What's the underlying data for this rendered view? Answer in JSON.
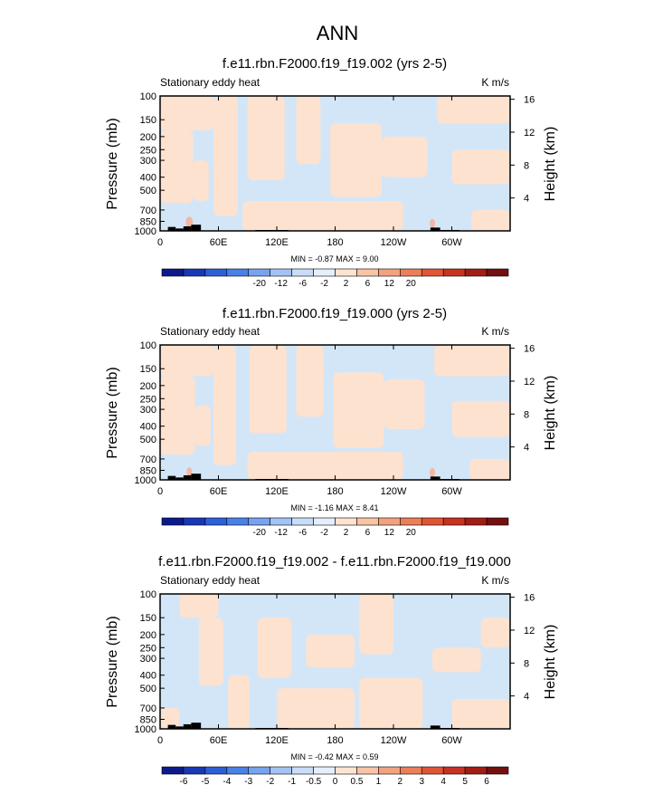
{
  "figure": {
    "title": "ANN",
    "fill_colors": {
      "ocean_blue": "#d3e6f8",
      "peach": "#fde2cf",
      "light_red": "#f5b7a0",
      "terrain": "#000000",
      "frame": "#000000"
    }
  },
  "chart_data": [
    {
      "type": "heatmap",
      "title": "f.e11.rbn.F2000.f19_f19.002 (yrs 2-5)",
      "left_label": "Stationary eddy heat",
      "right_label": "K m/s",
      "ylabel": "Pressure (mb)",
      "ylabel_right": "Height (km)",
      "x_ticks": [
        "0",
        "60E",
        "120E",
        "180",
        "120W",
        "60W"
      ],
      "x_tick_values": [
        0,
        60,
        120,
        180,
        240,
        300
      ],
      "xlim": [
        0,
        360
      ],
      "y_ticks": [
        "100",
        "150",
        "200",
        "250",
        "300",
        "400",
        "500",
        "700",
        "850",
        "1000"
      ],
      "y_tick_values": [
        100,
        150,
        200,
        250,
        300,
        400,
        500,
        700,
        850,
        1000
      ],
      "ylim": [
        100,
        1000
      ],
      "right_ticks": [
        "4",
        "8",
        "12",
        "16"
      ],
      "right_tick_values": [
        4,
        8,
        12,
        16
      ],
      "stats": "MIN = -0.87  MAX =  9.00",
      "min": -0.87,
      "max": 9.0,
      "colorbar": {
        "labels": [
          "-20",
          "-12",
          "-6",
          "-2",
          "2",
          "6",
          "12",
          "20"
        ],
        "colors": [
          "#0c1b8c",
          "#1838b8",
          "#2c5fd8",
          "#4a81e8",
          "#77a3ef",
          "#a3c3f5",
          "#c9dcf8",
          "#e5eefb",
          "#fde3d0",
          "#f8c4a6",
          "#f2a27e",
          "#ec7e58",
          "#e05535",
          "#c73222",
          "#a31d14",
          "#741010"
        ]
      },
      "terrain": [
        {
          "lon_start": 8,
          "lon_end": 16,
          "top_mb": 935
        },
        {
          "lon_start": 16,
          "lon_end": 24,
          "top_mb": 960
        },
        {
          "lon_start": 24,
          "lon_end": 32,
          "top_mb": 925
        },
        {
          "lon_start": 32,
          "lon_end": 42,
          "top_mb": 900
        },
        {
          "lon_start": 98,
          "lon_end": 132,
          "top_mb": 985
        },
        {
          "lon_start": 278,
          "lon_end": 288,
          "top_mb": 945
        },
        {
          "lon_start": 288,
          "lon_end": 308,
          "top_mb": 985
        }
      ],
      "peach_regions": [
        {
          "lon": [
            0,
            55
          ],
          "p": [
            100,
            180
          ]
        },
        {
          "lon": [
            0,
            34
          ],
          "p": [
            180,
            620
          ]
        },
        {
          "lon": [
            34,
            50
          ],
          "p": [
            300,
            600
          ]
        },
        {
          "lon": [
            55,
            80
          ],
          "p": [
            100,
            780
          ]
        },
        {
          "lon": [
            90,
            128
          ],
          "p": [
            100,
            420
          ]
        },
        {
          "lon": [
            140,
            165
          ],
          "p": [
            100,
            320
          ]
        },
        {
          "lon": [
            85,
            250
          ],
          "p": [
            600,
            1000
          ]
        },
        {
          "lon": [
            175,
            228
          ],
          "p": [
            160,
            560
          ]
        },
        {
          "lon": [
            228,
            275
          ],
          "p": [
            200,
            400
          ]
        },
        {
          "lon": [
            285,
            360
          ],
          "p": [
            100,
            160
          ]
        },
        {
          "lon": [
            300,
            360
          ],
          "p": [
            250,
            450
          ]
        },
        {
          "lon": [
            320,
            360
          ],
          "p": [
            700,
            1000
          ]
        }
      ],
      "warm_spots": [
        {
          "lon": 30,
          "p": 860,
          "rx": 4,
          "ry": 6
        },
        {
          "lon": 280,
          "p": 880,
          "rx": 3,
          "ry": 5
        }
      ]
    },
    {
      "type": "heatmap",
      "title": "f.e11.rbn.F2000.f19_f19.000 (yrs 2-5)",
      "left_label": "Stationary eddy heat",
      "right_label": "K m/s",
      "ylabel": "Pressure (mb)",
      "ylabel_right": "Height (km)",
      "x_ticks": [
        "0",
        "60E",
        "120E",
        "180",
        "120W",
        "60W"
      ],
      "x_tick_values": [
        0,
        60,
        120,
        180,
        240,
        300
      ],
      "xlim": [
        0,
        360
      ],
      "y_ticks": [
        "100",
        "150",
        "200",
        "250",
        "300",
        "400",
        "500",
        "700",
        "850",
        "1000"
      ],
      "y_tick_values": [
        100,
        150,
        200,
        250,
        300,
        400,
        500,
        700,
        850,
        1000
      ],
      "ylim": [
        100,
        1000
      ],
      "right_ticks": [
        "4",
        "8",
        "12",
        "16"
      ],
      "right_tick_values": [
        4,
        8,
        12,
        16
      ],
      "stats": "MIN = -1.16  MAX =  8.41",
      "min": -1.16,
      "max": 8.41,
      "colorbar": {
        "labels": [
          "-20",
          "-12",
          "-6",
          "-2",
          "2",
          "6",
          "12",
          "20"
        ],
        "colors": [
          "#0c1b8c",
          "#1838b8",
          "#2c5fd8",
          "#4a81e8",
          "#77a3ef",
          "#a3c3f5",
          "#c9dcf8",
          "#e5eefb",
          "#fde3d0",
          "#f8c4a6",
          "#f2a27e",
          "#ec7e58",
          "#e05535",
          "#c73222",
          "#a31d14",
          "#741010"
        ]
      },
      "terrain": [
        {
          "lon_start": 8,
          "lon_end": 16,
          "top_mb": 935
        },
        {
          "lon_start": 16,
          "lon_end": 24,
          "top_mb": 960
        },
        {
          "lon_start": 24,
          "lon_end": 32,
          "top_mb": 925
        },
        {
          "lon_start": 32,
          "lon_end": 42,
          "top_mb": 900
        },
        {
          "lon_start": 98,
          "lon_end": 132,
          "top_mb": 985
        },
        {
          "lon_start": 278,
          "lon_end": 288,
          "top_mb": 945
        },
        {
          "lon_start": 288,
          "lon_end": 308,
          "top_mb": 985
        }
      ],
      "peach_regions": [
        {
          "lon": [
            0,
            55
          ],
          "p": [
            100,
            170
          ]
        },
        {
          "lon": [
            0,
            36
          ],
          "p": [
            170,
            650
          ]
        },
        {
          "lon": [
            36,
            52
          ],
          "p": [
            280,
            560
          ]
        },
        {
          "lon": [
            55,
            78
          ],
          "p": [
            100,
            780
          ]
        },
        {
          "lon": [
            92,
            130
          ],
          "p": [
            100,
            450
          ]
        },
        {
          "lon": [
            140,
            168
          ],
          "p": [
            100,
            340
          ]
        },
        {
          "lon": [
            90,
            250
          ],
          "p": [
            620,
            1000
          ]
        },
        {
          "lon": [
            178,
            230
          ],
          "p": [
            160,
            580
          ]
        },
        {
          "lon": [
            230,
            272
          ],
          "p": [
            180,
            420
          ]
        },
        {
          "lon": [
            282,
            360
          ],
          "p": [
            100,
            170
          ]
        },
        {
          "lon": [
            300,
            360
          ],
          "p": [
            260,
            480
          ]
        },
        {
          "lon": [
            318,
            360
          ],
          "p": [
            700,
            1000
          ]
        }
      ],
      "warm_spots": [
        {
          "lon": 30,
          "p": 870,
          "rx": 3,
          "ry": 5
        },
        {
          "lon": 280,
          "p": 880,
          "rx": 3,
          "ry": 5
        }
      ]
    },
    {
      "type": "heatmap",
      "title": "f.e11.rbn.F2000.f19_f19.002 - f.e11.rbn.F2000.f19_f19.000",
      "left_label": "Stationary eddy heat",
      "right_label": "K m/s",
      "ylabel": "Pressure (mb)",
      "ylabel_right": "Height (km)",
      "x_ticks": [
        "0",
        "60E",
        "120E",
        "180",
        "120W",
        "60W"
      ],
      "x_tick_values": [
        0,
        60,
        120,
        180,
        240,
        300
      ],
      "xlim": [
        0,
        360
      ],
      "y_ticks": [
        "100",
        "150",
        "200",
        "250",
        "300",
        "400",
        "500",
        "700",
        "850",
        "1000"
      ],
      "y_tick_values": [
        100,
        150,
        200,
        250,
        300,
        400,
        500,
        700,
        850,
        1000
      ],
      "ylim": [
        100,
        1000
      ],
      "right_ticks": [
        "4",
        "8",
        "12",
        "16"
      ],
      "right_tick_values": [
        4,
        8,
        12,
        16
      ],
      "stats": "MIN = -0.42  MAX =  0.59",
      "min": -0.42,
      "max": 0.59,
      "colorbar": {
        "labels": [
          "-6",
          "-5",
          "-4",
          "-3",
          "-2",
          "-1",
          "-0.5",
          "0",
          "0.5",
          "1",
          "2",
          "3",
          "4",
          "5",
          "6"
        ],
        "colors": [
          "#0c1b8c",
          "#1838b8",
          "#2c5fd8",
          "#4a81e8",
          "#77a3ef",
          "#a3c3f5",
          "#c9dcf8",
          "#e5eefb",
          "#fde3d0",
          "#f8c4a6",
          "#f2a27e",
          "#ec7e58",
          "#e05535",
          "#c73222",
          "#a31d14",
          "#741010"
        ]
      },
      "terrain": [
        {
          "lon_start": 8,
          "lon_end": 16,
          "top_mb": 935
        },
        {
          "lon_start": 16,
          "lon_end": 24,
          "top_mb": 960
        },
        {
          "lon_start": 24,
          "lon_end": 32,
          "top_mb": 925
        },
        {
          "lon_start": 32,
          "lon_end": 42,
          "top_mb": 900
        },
        {
          "lon_start": 98,
          "lon_end": 132,
          "top_mb": 985
        },
        {
          "lon_start": 278,
          "lon_end": 288,
          "top_mb": 945
        },
        {
          "lon_start": 288,
          "lon_end": 308,
          "top_mb": 985
        }
      ],
      "peach_regions": [
        {
          "lon": [
            20,
            60
          ],
          "p": [
            100,
            150
          ]
        },
        {
          "lon": [
            40,
            65
          ],
          "p": [
            150,
            480
          ]
        },
        {
          "lon": [
            0,
            20
          ],
          "p": [
            700,
            1000
          ]
        },
        {
          "lon": [
            70,
            92
          ],
          "p": [
            400,
            1000
          ]
        },
        {
          "lon": [
            100,
            135
          ],
          "p": [
            150,
            420
          ]
        },
        {
          "lon": [
            120,
            200
          ],
          "p": [
            500,
            1000
          ]
        },
        {
          "lon": [
            150,
            200
          ],
          "p": [
            200,
            350
          ]
        },
        {
          "lon": [
            205,
            240
          ],
          "p": [
            100,
            280
          ]
        },
        {
          "lon": [
            205,
            270
          ],
          "p": [
            420,
            1000
          ]
        },
        {
          "lon": [
            280,
            330
          ],
          "p": [
            250,
            380
          ]
        },
        {
          "lon": [
            300,
            360
          ],
          "p": [
            600,
            1000
          ]
        },
        {
          "lon": [
            330,
            360
          ],
          "p": [
            150,
            250
          ]
        }
      ],
      "warm_spots": []
    }
  ]
}
